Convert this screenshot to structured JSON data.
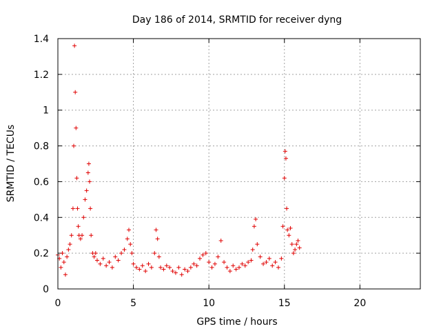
{
  "chart_data": {
    "type": "scatter",
    "title": "Day 186 of 2014, SRMTID for receiver dyng",
    "xlabel": "GPS time / hours",
    "ylabel": "SRMTID / TECUs",
    "xlim": [
      0,
      24
    ],
    "ylim": [
      0,
      1.4
    ],
    "xticks": [
      0,
      5,
      10,
      15,
      20
    ],
    "yticks": [
      0,
      0.2,
      0.4,
      0.6,
      0.8,
      1,
      1.2,
      1.4
    ],
    "xtick_labels": [
      "0",
      "5",
      "10",
      "15",
      "20"
    ],
    "ytick_labels": [
      "0",
      "0.2",
      "0.4",
      "0.6",
      "0.8",
      "1",
      "1.2",
      "1.4"
    ],
    "grid": true,
    "marker": "+",
    "series": [
      {
        "name": "SRMTID",
        "color": "#e00000",
        "x": [
          0.0,
          0.1,
          0.2,
          0.3,
          0.4,
          0.5,
          0.6,
          0.7,
          0.8,
          0.9,
          1.0,
          1.05,
          1.1,
          1.15,
          1.2,
          1.25,
          1.3,
          1.35,
          1.4,
          1.5,
          1.6,
          1.7,
          1.8,
          1.9,
          2.0,
          2.05,
          2.1,
          2.15,
          2.2,
          2.3,
          2.4,
          2.5,
          2.6,
          2.8,
          3.0,
          3.2,
          3.4,
          3.6,
          3.8,
          4.0,
          4.2,
          4.4,
          4.6,
          4.7,
          4.8,
          4.9,
          5.0,
          5.2,
          5.4,
          5.6,
          5.8,
          6.0,
          6.2,
          6.4,
          6.5,
          6.6,
          6.7,
          6.8,
          7.0,
          7.2,
          7.4,
          7.6,
          7.8,
          8.0,
          8.2,
          8.4,
          8.6,
          8.8,
          9.0,
          9.2,
          9.4,
          9.6,
          9.8,
          10.0,
          10.2,
          10.4,
          10.6,
          10.8,
          11.0,
          11.2,
          11.4,
          11.6,
          11.8,
          12.0,
          12.2,
          12.4,
          12.6,
          12.8,
          12.9,
          13.0,
          13.1,
          13.2,
          13.4,
          13.6,
          13.8,
          14.0,
          14.2,
          14.4,
          14.6,
          14.8,
          14.9,
          15.0,
          15.05,
          15.1,
          15.15,
          15.2,
          15.3,
          15.4,
          15.5,
          15.6,
          15.7,
          15.8,
          15.9,
          16.0
        ],
        "y": [
          0.19,
          0.17,
          0.12,
          0.2,
          0.15,
          0.08,
          0.18,
          0.22,
          0.25,
          0.3,
          0.45,
          0.8,
          1.36,
          1.1,
          0.9,
          0.62,
          0.45,
          0.35,
          0.3,
          0.28,
          0.3,
          0.4,
          0.5,
          0.55,
          0.65,
          0.7,
          0.6,
          0.45,
          0.3,
          0.2,
          0.18,
          0.2,
          0.16,
          0.14,
          0.17,
          0.13,
          0.15,
          0.12,
          0.18,
          0.16,
          0.2,
          0.22,
          0.28,
          0.33,
          0.25,
          0.2,
          0.14,
          0.12,
          0.11,
          0.13,
          0.1,
          0.14,
          0.12,
          0.2,
          0.33,
          0.28,
          0.18,
          0.12,
          0.11,
          0.13,
          0.12,
          0.1,
          0.09,
          0.12,
          0.08,
          0.11,
          0.1,
          0.12,
          0.14,
          0.13,
          0.17,
          0.19,
          0.2,
          0.15,
          0.12,
          0.14,
          0.18,
          0.27,
          0.15,
          0.12,
          0.1,
          0.13,
          0.11,
          0.12,
          0.14,
          0.13,
          0.15,
          0.16,
          0.22,
          0.35,
          0.39,
          0.25,
          0.18,
          0.14,
          0.15,
          0.17,
          0.13,
          0.15,
          0.12,
          0.17,
          0.35,
          0.62,
          0.77,
          0.73,
          0.45,
          0.33,
          0.3,
          0.34,
          0.25,
          0.2,
          0.22,
          0.25,
          0.27,
          0.23
        ]
      }
    ]
  }
}
